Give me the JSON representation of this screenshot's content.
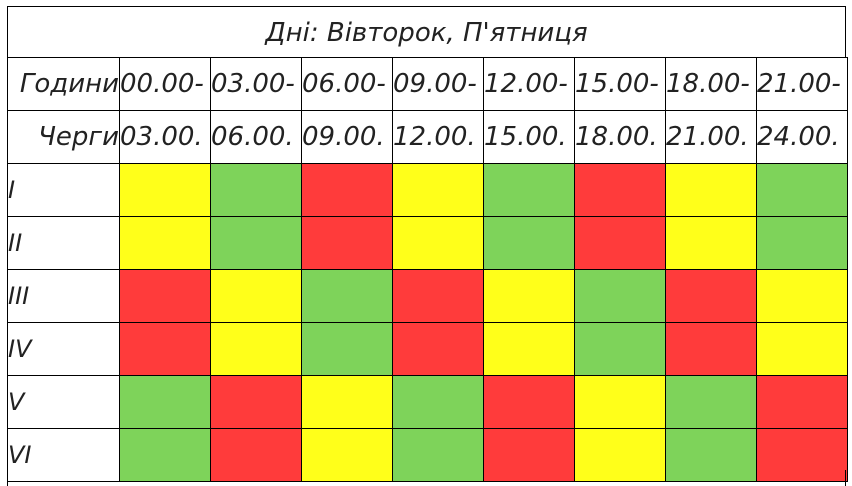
{
  "title": "Дні: Вівторок, П'ятниця",
  "hours_label": "Години",
  "queues_label": "Черги",
  "hours_from": [
    "00.00-",
    "03.00-",
    "06.00-",
    "09.00-",
    "12.00-",
    "15.00-",
    "18.00-",
    "21.00-"
  ],
  "hours_to": [
    "03.00.",
    "06.00.",
    "09.00.",
    "12.00.",
    "15.00.",
    "18.00.",
    "21.00.",
    "24.00."
  ],
  "status_colors": {
    "red": "#ff3b3b",
    "yellow": "#ffff1a",
    "green": "#7ed35a"
  },
  "rows": [
    {
      "label": "I",
      "cells": [
        "yellow",
        "green",
        "red",
        "yellow",
        "green",
        "red",
        "yellow",
        "green"
      ]
    },
    {
      "label": "II",
      "cells": [
        "yellow",
        "green",
        "red",
        "yellow",
        "green",
        "red",
        "yellow",
        "green"
      ]
    },
    {
      "label": "III",
      "cells": [
        "red",
        "yellow",
        "green",
        "red",
        "yellow",
        "green",
        "red",
        "yellow"
      ]
    },
    {
      "label": "IV",
      "cells": [
        "red",
        "yellow",
        "green",
        "red",
        "yellow",
        "green",
        "red",
        "yellow"
      ]
    },
    {
      "label": "V",
      "cells": [
        "green",
        "red",
        "yellow",
        "green",
        "red",
        "yellow",
        "green",
        "red"
      ]
    },
    {
      "label": "VI",
      "cells": [
        "green",
        "red",
        "yellow",
        "green",
        "red",
        "yellow",
        "green",
        "red"
      ]
    }
  ]
}
